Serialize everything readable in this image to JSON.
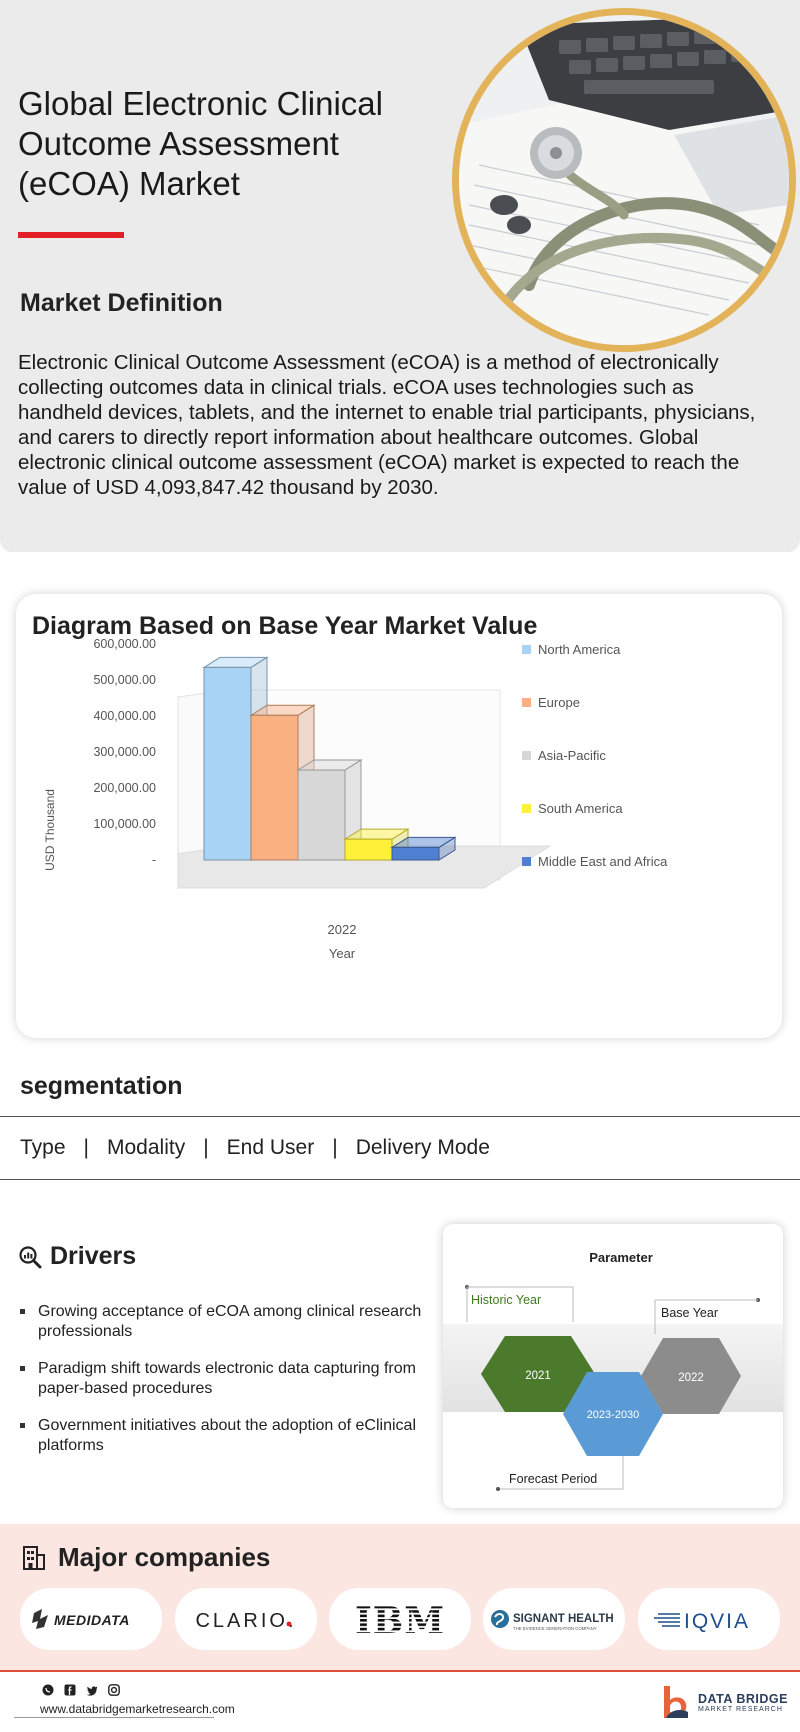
{
  "header": {
    "title": "Global Electronic Clinical Outcome Assessment (eCOA) Market",
    "definition_heading": "Market Definition",
    "definition_text": "Electronic Clinical Outcome Assessment (eCOA) is a method of electronically collecting outcomes data in clinical trials. eCOA uses technologies such as handheld devices, tablets, and the internet to enable trial participants, physicians, and carers to directly report information about healthcare outcomes. Global electronic clinical outcome assessment (eCOA) market is expected to reach the value of USD 4,093,847.42 thousand by 2030."
  },
  "chart": {
    "heading": "Diagram Based on Base Year Market Value"
  },
  "chart_data": {
    "type": "bar",
    "categories": [
      "2022"
    ],
    "series": [
      {
        "name": "North America",
        "values": [
          535000
        ],
        "color": "#a9d3f4"
      },
      {
        "name": "Europe",
        "values": [
          402000
        ],
        "color": "#f9b182"
      },
      {
        "name": "Asia-Pacific",
        "values": [
          250000
        ],
        "color": "#d7d7d7"
      },
      {
        "name": "South America",
        "values": [
          58000
        ],
        "color": "#fff13a"
      },
      {
        "name": "Middle East and Africa",
        "values": [
          35000
        ],
        "color": "#4f7fd0"
      }
    ],
    "ytick_labels": [
      "-",
      "100,000.00",
      "200,000.00",
      "300,000.00",
      "400,000.00",
      "500,000.00",
      "600,000.00"
    ],
    "ylim": [
      0,
      600000
    ],
    "xlabel": "Year",
    "ylabel": "USD Thousand",
    "legend": "right",
    "grid": false
  },
  "segmentation": {
    "heading": "segmentation",
    "items": [
      "Type",
      "Modality",
      "End User",
      "Delivery Mode"
    ],
    "separator": "|"
  },
  "drivers": {
    "heading": "Drivers",
    "items": [
      "Growing acceptance of eCOA among clinical research professionals",
      "Paradigm shift towards electronic data capturing from paper-based procedures",
      "Government initiatives about the adoption of eClinical platforms"
    ]
  },
  "parameter": {
    "title": "Parameter",
    "historic_label": "Historic Year",
    "historic_value": "2021",
    "forecast_label": "Forecast Period",
    "forecast_value": "2023-2030",
    "base_label": "Base Year",
    "base_value": "2022",
    "colors": {
      "historic": "#4c7a2c",
      "forecast": "#5b9bd5",
      "base": "#8c8c8c"
    }
  },
  "companies": {
    "heading": "Major companies",
    "logos": [
      "MEDIDATA",
      "CLARIO.",
      "IBM",
      "SIGNANT HEALTH",
      "IQVIA"
    ],
    "signant_tagline": "THE EVIDENCE GENERATION COMPANY"
  },
  "footer": {
    "url": "www.databridgemarketresearch.com",
    "brand": "DATA BRIDGE",
    "brand_sub": "MARKET RESEARCH",
    "social_icons": [
      "whatsapp-icon",
      "facebook-icon",
      "twitter-icon",
      "instagram-icon"
    ]
  }
}
